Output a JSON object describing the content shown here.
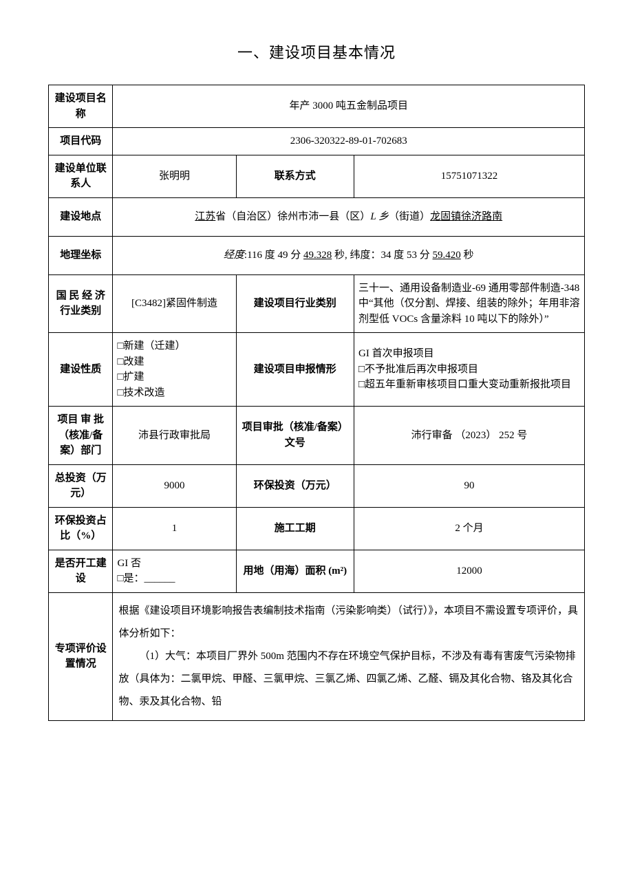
{
  "title": "一、建设项目基本情况",
  "rows": {
    "project_name": {
      "label": "建设项目名称",
      "value": "年产 3000 吨五金制品项目"
    },
    "project_code": {
      "label": "项目代码",
      "value": "2306-320322-89-01-702683"
    },
    "unit_contact": {
      "label": "建设单位联系人",
      "value": "张明明"
    },
    "contact_method": {
      "label": "联系方式",
      "value": "15751071322"
    },
    "location": {
      "label": "建设地点",
      "prefix": "江苏",
      "t1": "省（自治区）徐州市沛一县（区）",
      "u1": "L 乡",
      "t2": "（街道）",
      "u2": "龙固镇徐济路南"
    },
    "coords": {
      "label": "地理坐标",
      "prefix": "经度",
      "t1": ":116 度 49 分 ",
      "u1": "49.328",
      "t2": " 秒, 纬度：34 度 53 分 ",
      "u2": "59.420",
      "t3": " 秒"
    },
    "industry_cat": {
      "label": "国 民 经 济行业类别",
      "value": "[C3482]紧固件制造"
    },
    "project_industry": {
      "label": "建设项目行业类别",
      "value": "三十一、通用设备制造业-69 通用零部件制造-348 中“其他（仅分割、焊接、组装的除外；年用非溶剂型低 VOCs 含量涂料 10 吨以下的除外）”"
    },
    "construction_nature": {
      "label": "建设性质",
      "opts": [
        "□新建（迁建）",
        "□改建",
        "□扩建",
        "□技术改造"
      ]
    },
    "report_situation": {
      "label": "建设项目申报情形",
      "opts": [
        "GI 首次申报项目",
        "□不予批准后再次申报项目",
        "□超五年重新审核项目口重大变动重新报批项目"
      ]
    },
    "approval_dept": {
      "label": "项目 审 批（核准/备案）部门",
      "value": "沛县行政审批局"
    },
    "approval_no": {
      "label": "项目审批（核准/备案）文号",
      "value": "沛行审备 （2023） 252 号"
    },
    "total_invest": {
      "label": "总投资（万元）",
      "value": "9000"
    },
    "env_invest": {
      "label": "环保投资（万元）",
      "value": "90"
    },
    "env_ratio": {
      "label": "环保投资占比（%）",
      "value": "1"
    },
    "period": {
      "label": "施工工期",
      "value": "2 个月"
    },
    "started": {
      "label": "是否开工建设",
      "opts": [
        "GI 否",
        "□是：______"
      ]
    },
    "land_area": {
      "label": "用地（用海）面积 (m²)",
      "value": "12000"
    },
    "special_eval": {
      "label": "专项评价设置情况",
      "p1": "根据《建设项目环境影响报告表编制技术指南（污染影响类）（试行）》，本项目不需设置专项评价，具体分析如下：",
      "p2": "（1）大气：本项目厂界外 500m 范围内不存在环境空气保护目标，不涉及有毒有害废气污染物排放（具体为：二氯甲烷、甲醛、三氯甲烷、三氯乙烯、四氯乙烯、乙醛、镉及其化合物、铬及其化合物、汞及其化合物、铅"
    }
  }
}
